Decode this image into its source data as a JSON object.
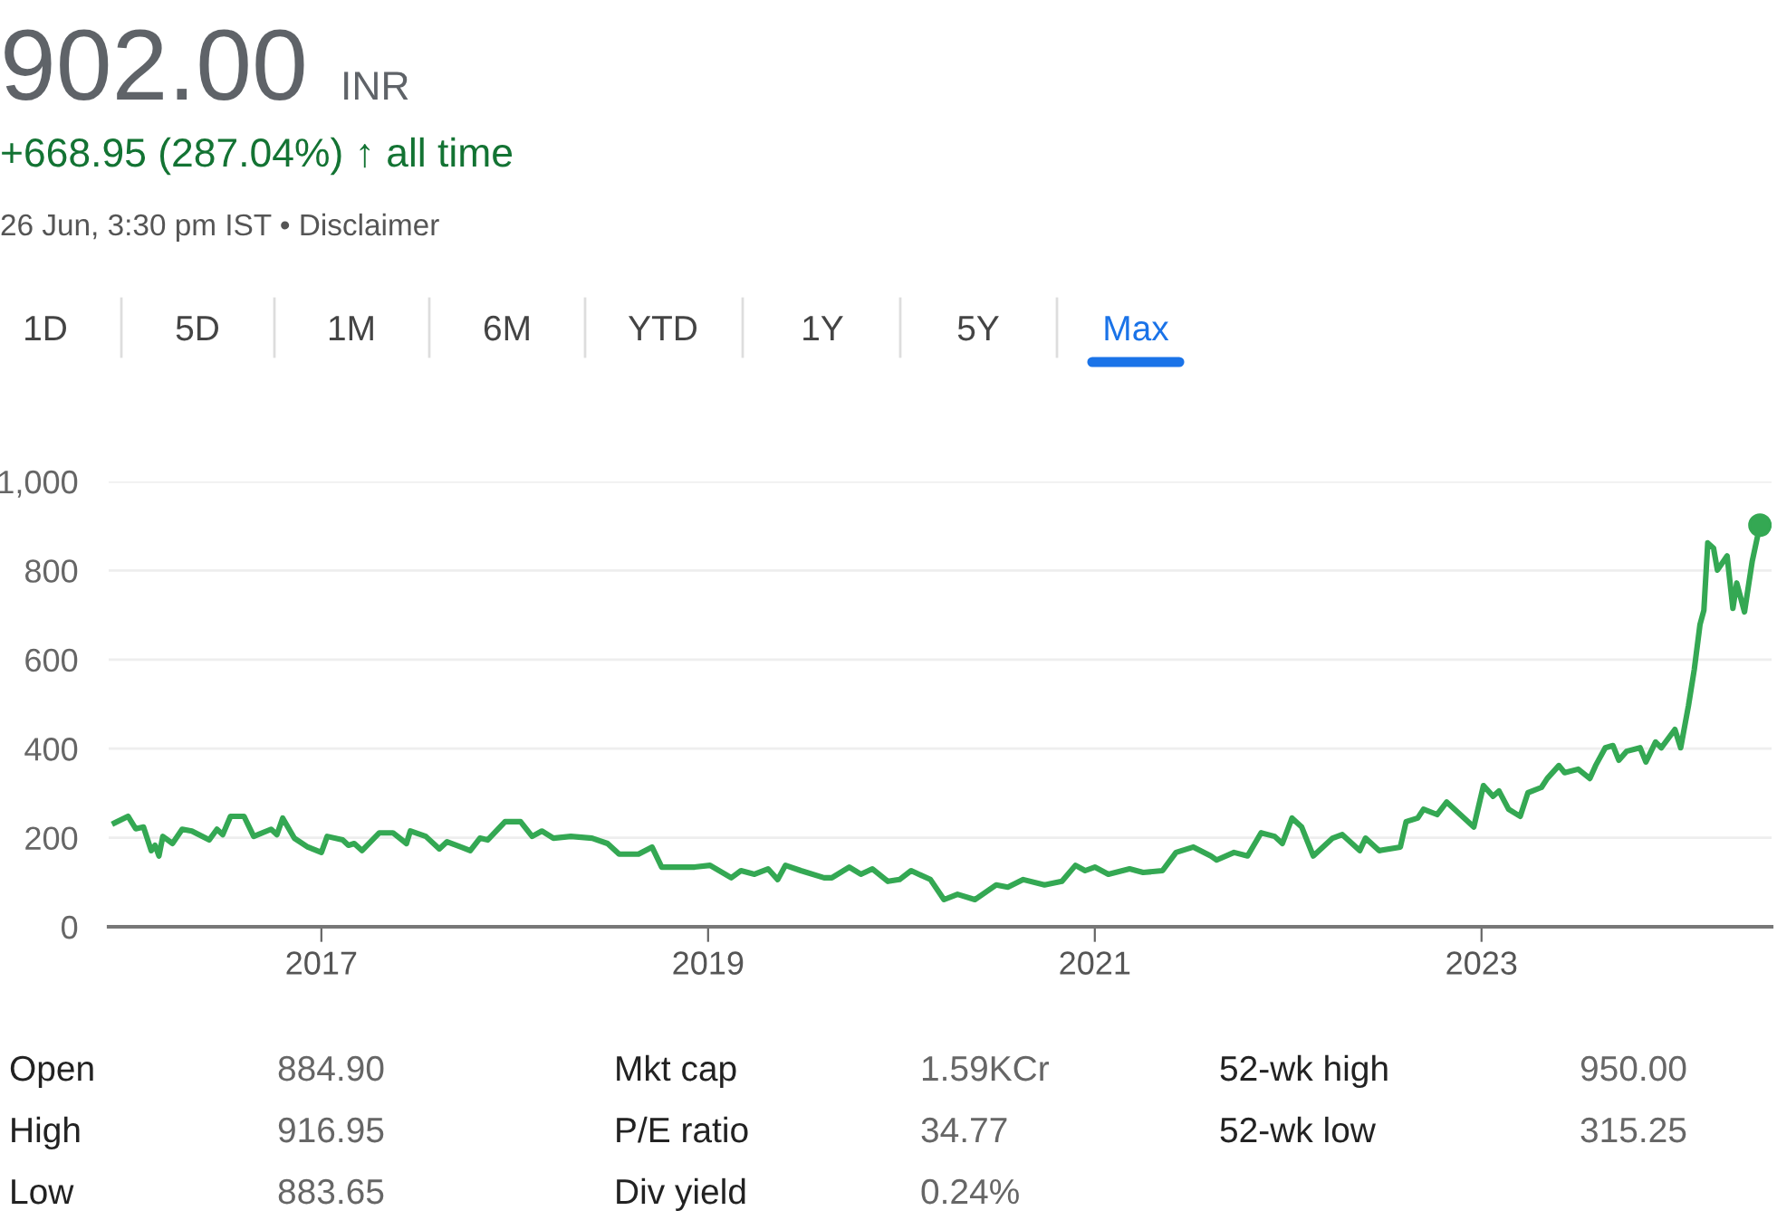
{
  "chart_data": {
    "type": "line",
    "title": "902.00",
    "subtitle": "+668.95 (287.04%) ↑ all time",
    "annotations": [
      "INR",
      "26 Jun, 3:30 pm IST • Disclaimer",
      "1D",
      "5D",
      "1M",
      "6M",
      "YTD",
      "1Y",
      "5Y",
      "Max",
      "Open",
      "884.90",
      "Mkt cap",
      "1.59KCr",
      "52-wk high",
      "950.00",
      "High",
      "916.95",
      "P/E ratio",
      "34.77",
      "52-wk low",
      "315.25",
      "Low",
      "883.65",
      "Div yield",
      "0.24%"
    ],
    "series": [
      {
        "color": "#34a853",
        "x": [
          2015.93,
          2016.0,
          2016.04,
          2016.08,
          2016.12,
          2016.14,
          2016.16,
          2016.18,
          2016.23,
          2016.28,
          2016.33,
          2016.42,
          2016.46,
          2016.49,
          2016.53,
          2016.6,
          2016.65,
          2016.74,
          2016.77,
          2016.8,
          2016.86,
          2016.93,
          2017.0,
          2017.03,
          2017.11,
          2017.14,
          2017.17,
          2017.21,
          2017.3,
          2017.37,
          2017.44,
          2017.46,
          2017.54,
          2017.61,
          2017.65,
          2017.77,
          2017.82,
          2017.86,
          2017.95,
          2018.03,
          2018.09,
          2018.14,
          2018.2,
          2018.29,
          2018.4,
          2018.48,
          2018.54,
          2018.64,
          2018.71,
          2018.76,
          2018.85,
          2018.93,
          2019.01,
          2019.12,
          2019.17,
          2019.24,
          2019.31,
          2019.36,
          2019.4,
          2019.48,
          2019.6,
          2019.64,
          2019.73,
          2019.79,
          2019.85,
          2019.93,
          2019.99,
          2020.05,
          2020.15,
          2020.22,
          2020.29,
          2020.38,
          2020.49,
          2020.55,
          2020.63,
          2020.74,
          2020.83,
          2020.9,
          2020.95,
          2021.0,
          2021.07,
          2021.18,
          2021.25,
          2021.35,
          2021.42,
          2021.51,
          2021.6,
          2021.63,
          2021.72,
          2021.79,
          2021.86,
          2021.93,
          2021.97,
          2022.02,
          2022.07,
          2022.13,
          2022.23,
          2022.28,
          2022.37,
          2022.4,
          2022.47,
          2022.58,
          2022.61,
          2022.67,
          2022.7,
          2022.77,
          2022.82,
          2022.89,
          2022.96,
          2023.01,
          2023.06,
          2023.09,
          2023.14,
          2023.2,
          2023.24,
          2023.31,
          2023.34,
          2023.4,
          2023.43,
          2023.5,
          2023.56,
          2023.59,
          2023.64,
          2023.68,
          2023.71,
          2023.75,
          2023.82,
          2023.85,
          2023.9,
          2023.93,
          2024.0,
          2024.03,
          2024.07,
          2024.1,
          2024.13,
          2024.15,
          2024.17,
          2024.2,
          2024.22,
          2024.27,
          2024.3,
          2024.32,
          2024.36,
          2024.4,
          2024.44
        ],
        "values": [
          233,
          248,
          220,
          224,
          171,
          183,
          159,
          203,
          187,
          219,
          215,
          195,
          219,
          207,
          248,
          248,
          203,
          219,
          207,
          244,
          199,
          179,
          167,
          203,
          195,
          183,
          187,
          171,
          211,
          211,
          187,
          215,
          203,
          175,
          191,
          171,
          199,
          195,
          236,
          236,
          203,
          215,
          199,
          203,
          199,
          187,
          163,
          163,
          179,
          134,
          134,
          134,
          138,
          110,
          126,
          118,
          130,
          106,
          138,
          126,
          110,
          110,
          134,
          118,
          130,
          102,
          106,
          126,
          106,
          61,
          73,
          61,
          94,
          89,
          106,
          94,
          102,
          138,
          126,
          134,
          118,
          130,
          122,
          126,
          167,
          179,
          159,
          150,
          167,
          159,
          211,
          203,
          187,
          244,
          224,
          159,
          199,
          207,
          171,
          199,
          171,
          179,
          236,
          244,
          264,
          252,
          280,
          252,
          224,
          317,
          293,
          305,
          264,
          248,
          301,
          313,
          333,
          362,
          346,
          354,
          333,
          362,
          402,
          407,
          374,
          394,
          402,
          370,
          415,
          402,
          443,
          402,
          496,
          577,
          679,
          711,
          862,
          850,
          801,
          833,
          715,
          772,
          707,
          821,
          902
        ]
      },
      {
        "type": "scatter",
        "color": "#34a853",
        "marker": "circle",
        "x": [
          2024.44
        ],
        "values": [
          902
        ]
      }
    ],
    "xlim": [
      2015.9,
      2024.5
    ],
    "ylim": [
      0,
      1000
    ],
    "xticks": [
      2017,
      2019,
      2021,
      2023
    ],
    "yticks": [
      0,
      200,
      400,
      600,
      800,
      {
        "value": 1000,
        "label": "1,000"
      }
    ],
    "grid": "y",
    "legend": false,
    "marker": "none",
    "line_style": "solid"
  }
}
